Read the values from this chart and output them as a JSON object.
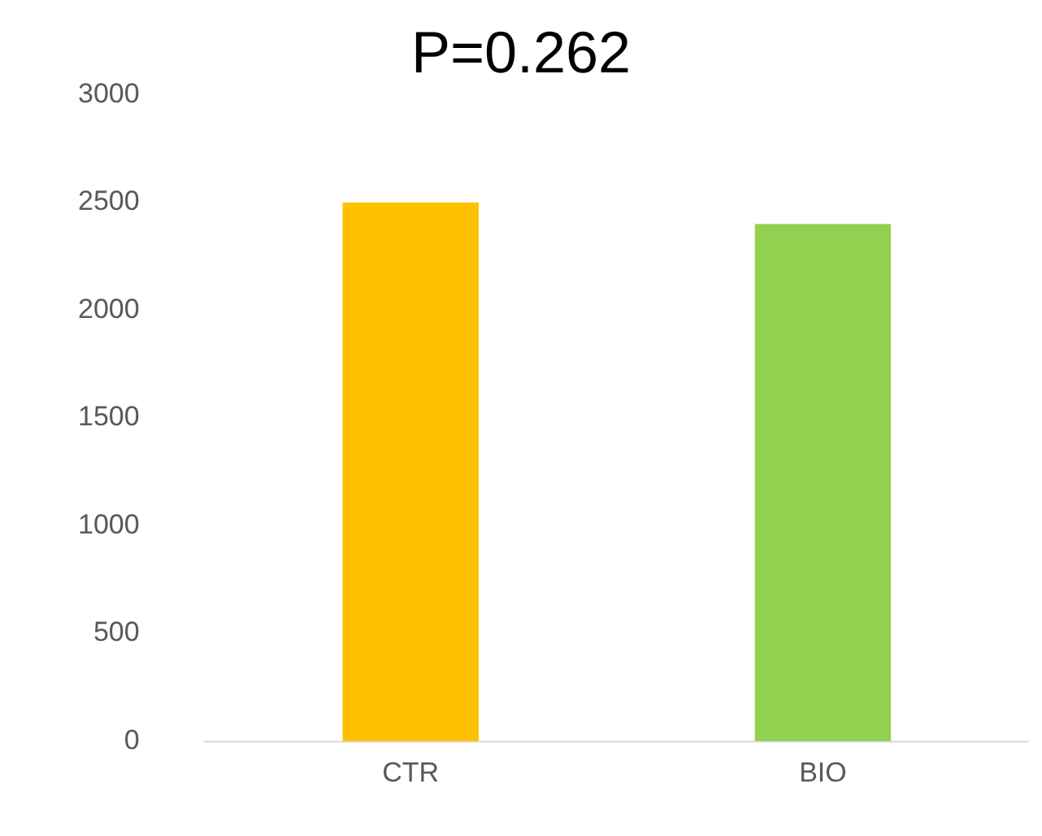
{
  "chart_data": {
    "type": "bar",
    "title": "P=0.262",
    "categories": [
      "CTR",
      "BIO"
    ],
    "values": [
      2500,
      2400
    ],
    "colors": [
      "#ffc000",
      "#92d050"
    ],
    "ylim": [
      0,
      3000
    ],
    "yticks": [
      0,
      500,
      1000,
      1500,
      2000,
      2500,
      3000
    ],
    "grid": false,
    "legend": false
  }
}
